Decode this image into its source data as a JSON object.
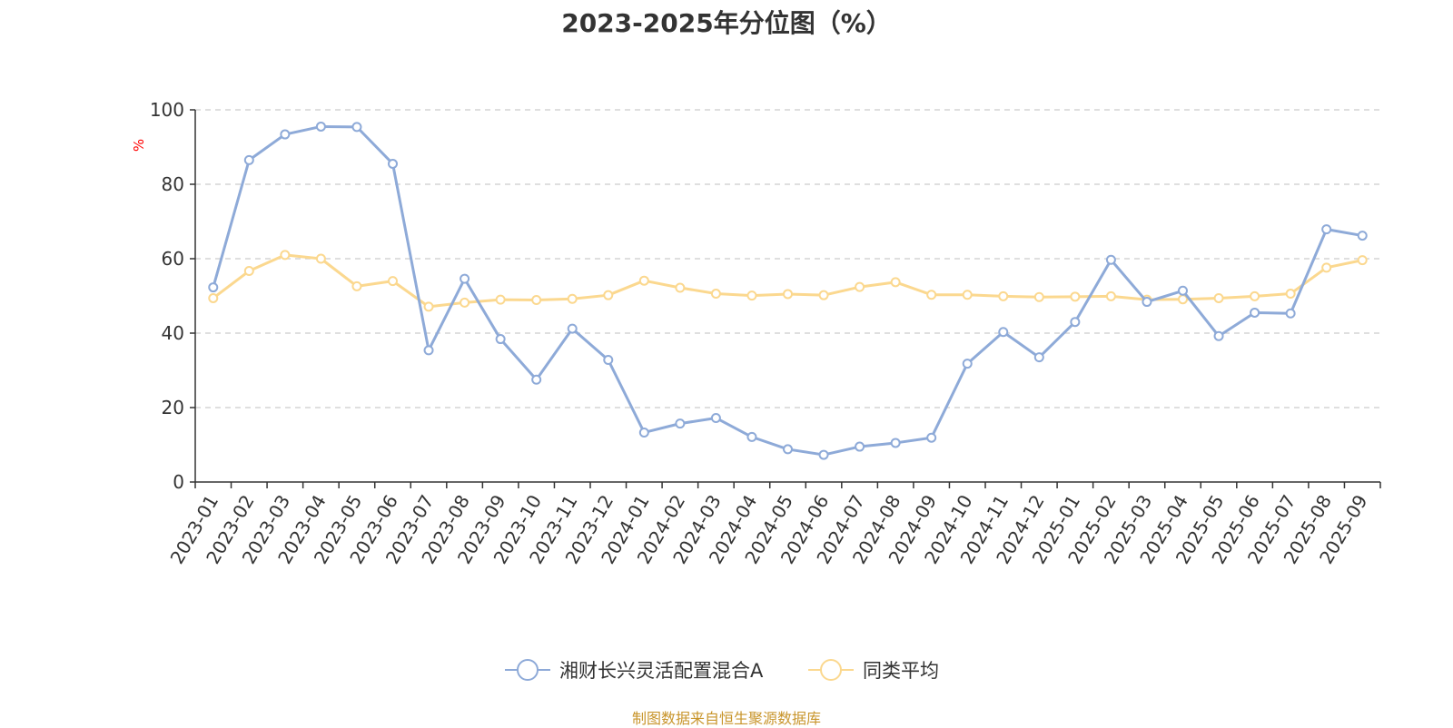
{
  "chart_data": {
    "type": "line",
    "title": "2023-2025年分位图（%）",
    "ylabel": "%",
    "xlabel": "",
    "ylim": [
      0,
      100
    ],
    "yticks": [
      0,
      20,
      40,
      60,
      80,
      100
    ],
    "grid": "horizontal dashed",
    "legend_position": "bottom",
    "categories": [
      "2023-01",
      "2023-02",
      "2023-03",
      "2023-04",
      "2023-05",
      "2023-06",
      "2023-07",
      "2023-08",
      "2023-09",
      "2023-10",
      "2023-11",
      "2023-12",
      "2024-01",
      "2024-02",
      "2024-03",
      "2024-04",
      "2024-05",
      "2024-06",
      "2024-07",
      "2024-08",
      "2024-09",
      "2024-10",
      "2024-11",
      "2024-12",
      "2025-01",
      "2025-02",
      "2025-03",
      "2025-04",
      "2025-05",
      "2025-06",
      "2025-07",
      "2025-08",
      "2025-09"
    ],
    "series": [
      {
        "name": "湘财长兴灵活配置混合A",
        "color": "#8eaad8",
        "values": [
          52.3,
          86.5,
          93.4,
          95.5,
          95.4,
          85.5,
          35.4,
          54.6,
          38.4,
          27.5,
          41.2,
          32.8,
          13.3,
          15.7,
          17.2,
          12.1,
          8.8,
          7.3,
          9.5,
          10.5,
          11.9,
          31.8,
          40.3,
          33.5,
          43.0,
          59.7,
          48.4,
          51.4,
          39.2,
          45.5,
          45.3,
          67.9,
          66.2
        ]
      },
      {
        "name": "同类平均",
        "color": "#fbd88f",
        "values": [
          49.4,
          56.7,
          61.0,
          60.0,
          52.6,
          54.0,
          47.1,
          48.2,
          49.0,
          48.9,
          49.2,
          50.2,
          54.1,
          52.2,
          50.6,
          50.1,
          50.5,
          50.2,
          52.4,
          53.7,
          50.3,
          50.3,
          49.9,
          49.7,
          49.8,
          49.9,
          49.0,
          49.1,
          49.4,
          49.9,
          50.6,
          57.6,
          59.6
        ]
      }
    ]
  },
  "source_note": "制图数据来自恒生聚源数据库",
  "colors": {
    "axis": "#333333",
    "grid": "#cccccc",
    "ylabel": "#ff0000",
    "source": "#c8952b"
  }
}
